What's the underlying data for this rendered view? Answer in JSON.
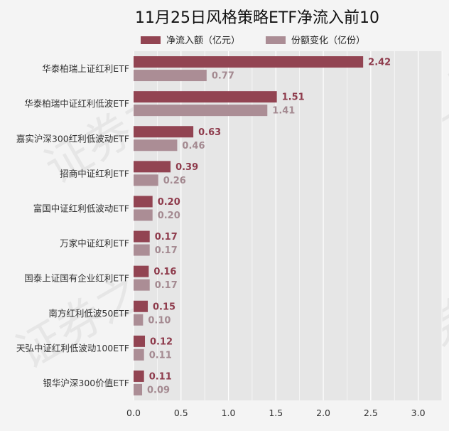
{
  "chart_data": {
    "type": "bar",
    "orientation": "horizontal",
    "title": "11月25日风格策略ETF净流入前10",
    "categories": [
      "华泰柏瑞上证红利ETF",
      "华泰柏瑞中证红利低波ETF",
      "嘉实沪深300红利低波动ETF",
      "招商中证红利ETF",
      "富国中证红利低波动ETF",
      "万家中证红利ETF",
      "国泰上证国有企业红利ETF",
      "南方红利低波50ETF",
      "天弘中证红利低波动100ETF",
      "银华沪深300价值ETF"
    ],
    "series": [
      {
        "name": "净流入额（亿元）",
        "color": "#924452",
        "values": [
          2.42,
          1.51,
          0.63,
          0.39,
          0.2,
          0.17,
          0.16,
          0.15,
          0.12,
          0.11
        ],
        "labels": [
          "2.42",
          "1.51",
          "0.63",
          "0.39",
          "0.20",
          "0.17",
          "0.16",
          "0.15",
          "0.12",
          "0.11"
        ]
      },
      {
        "name": "份额变化（亿份）",
        "color": "#ab8d95",
        "values": [
          0.77,
          1.41,
          0.46,
          0.26,
          0.2,
          0.17,
          0.17,
          0.1,
          0.11,
          0.09
        ],
        "labels": [
          "0.77",
          "1.41",
          "0.46",
          "0.26",
          "0.20",
          "0.17",
          "0.17",
          "0.10",
          "0.11",
          "0.09"
        ]
      }
    ],
    "xlim": [
      0,
      3.25
    ],
    "xticks": [
      0,
      0.5,
      1,
      1.5,
      2,
      2.5,
      3
    ],
    "xtick_labels": [
      "0.0",
      "0.5",
      "1.0",
      "1.5",
      "2.0",
      "2.5",
      "3.0"
    ],
    "grid": true,
    "legend_position": "top-center",
    "plot_background": "#e6e6e6",
    "watermark": "证券之星"
  }
}
